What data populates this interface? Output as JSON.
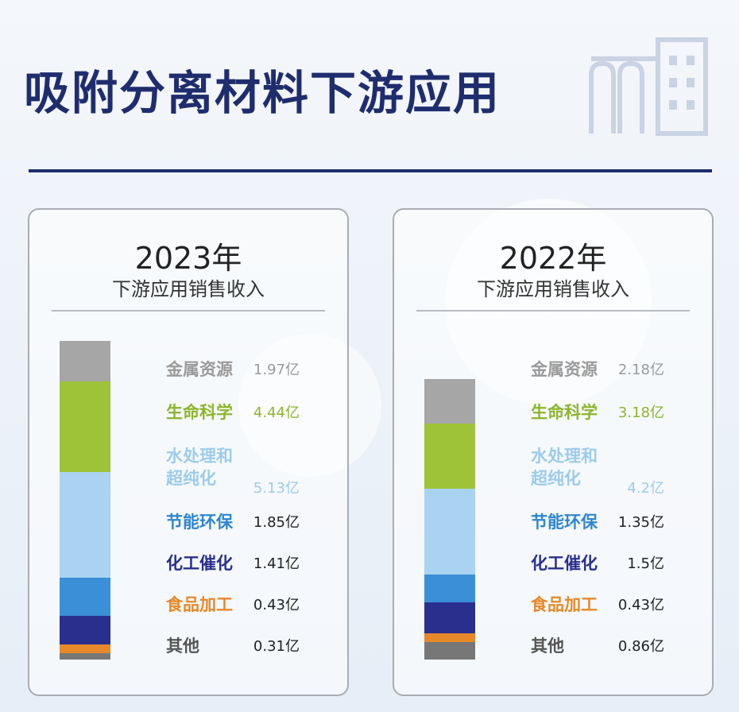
{
  "title": "吸附分离材料下游应用",
  "chart_data": [
    {
      "type": "bar",
      "stacked": true,
      "title": "2023年",
      "subtitle": "下游应用销售收入",
      "categories": [
        "金属资源",
        "生命科学",
        "水处理和超纯化",
        "节能环保",
        "化工催化",
        "食品加工",
        "其他"
      ],
      "values_text": [
        "1.97亿",
        "4.44亿",
        "5.13亿",
        "1.85亿",
        "1.41亿",
        "0.43亿",
        "0.31亿"
      ],
      "values": [
        1.97,
        4.44,
        5.13,
        1.85,
        1.41,
        0.43,
        0.31
      ],
      "unit": "亿",
      "colors": [
        "#a6a6a6",
        "#9ec338",
        "#a9d3f0",
        "#3a8fd6",
        "#2a2f8e",
        "#e6892a",
        "#777777"
      ],
      "label_colors": [
        "#9a9a9a",
        "#8cb52c",
        "#9ccbec",
        "#2f86cf",
        "#2a2f8e",
        "#e6892a",
        "#555555"
      ]
    },
    {
      "type": "bar",
      "stacked": true,
      "title": "2022年",
      "subtitle": "下游应用销售收入",
      "categories": [
        "金属资源",
        "生命科学",
        "水处理和超纯化",
        "节能环保",
        "化工催化",
        "食品加工",
        "其他"
      ],
      "values_text": [
        "2.18亿",
        "3.18亿",
        "4.2亿",
        "1.35亿",
        "1.5亿",
        "0.43亿",
        "0.86亿"
      ],
      "values": [
        2.18,
        3.18,
        4.2,
        1.35,
        1.5,
        0.43,
        0.86
      ],
      "unit": "亿",
      "colors": [
        "#a6a6a6",
        "#9ec338",
        "#a9d3f0",
        "#3a8fd6",
        "#2a2f8e",
        "#e6892a",
        "#777777"
      ],
      "label_colors": [
        "#9a9a9a",
        "#8cb52c",
        "#9ccbec",
        "#2f86cf",
        "#2a2f8e",
        "#e6892a",
        "#555555"
      ]
    }
  ]
}
